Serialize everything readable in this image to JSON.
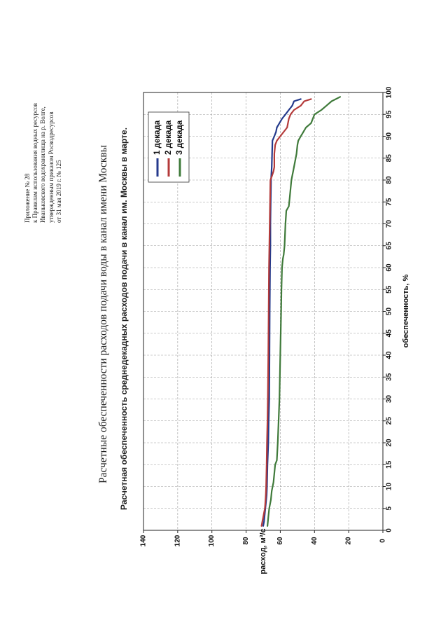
{
  "header": {
    "lines": [
      "Приложение № 28",
      "к Правилам использования водных ресурсов",
      "Иваньковского водохранилища на р. Волге,",
      "утвержденным приказом Росводресурсов",
      "от 31 мая 2019 г. № 125"
    ]
  },
  "main_title": "Расчетные обеспеченности расходов подачи воды в канал имени Москвы",
  "chart_data": {
    "type": "line",
    "title": "Расчетная обеспеченность среднедекадных расходов подачи в канал им. Москвы в марте.",
    "xlabel": "обеспеченность, %",
    "ylabel": "расход, м³/с",
    "xlim": [
      0,
      100
    ],
    "ylim": [
      0,
      140
    ],
    "x_ticks": [
      0,
      5,
      10,
      15,
      20,
      25,
      30,
      35,
      40,
      45,
      50,
      55,
      60,
      65,
      70,
      75,
      80,
      85,
      90,
      95,
      100
    ],
    "y_ticks": [
      0,
      20,
      40,
      60,
      80,
      100,
      120,
      140
    ],
    "grid": true,
    "legend_position": "top-left",
    "series": [
      {
        "name": "1 декада",
        "color": "#243a8c",
        "x": [
          1,
          2,
          4,
          6,
          8,
          10,
          15,
          20,
          25,
          30,
          40,
          50,
          60,
          65,
          70,
          75,
          80,
          83,
          86,
          89,
          90,
          91,
          92,
          93,
          94,
          95,
          96,
          97,
          98,
          98.5
        ],
        "y": [
          70,
          69.5,
          69,
          68.5,
          68,
          67.8,
          67.5,
          67,
          66.8,
          66.5,
          66.3,
          66.2,
          66,
          65.8,
          65.8,
          65.6,
          65.4,
          65,
          64.8,
          64.6,
          63.5,
          62.5,
          62,
          60.5,
          59,
          57,
          55,
          53,
          52,
          48
        ]
      },
      {
        "name": "2 декада",
        "color": "#b43a3a",
        "x": [
          1,
          2,
          3,
          4,
          5,
          6,
          8,
          10,
          15,
          20,
          25,
          30,
          40,
          50,
          60,
          65,
          70,
          75,
          80,
          81,
          82,
          83,
          86,
          88,
          89,
          90,
          92,
          93,
          94,
          95,
          96,
          97,
          98,
          98.5
        ],
        "y": [
          71,
          70.5,
          70,
          69.5,
          69,
          68.8,
          68.5,
          68.3,
          68,
          67.8,
          67.5,
          67.3,
          67,
          66.8,
          66.6,
          66.4,
          66.2,
          66,
          65.8,
          64.8,
          64,
          63.5,
          63.5,
          63,
          62,
          60,
          56,
          55.5,
          55,
          54,
          52,
          48,
          46,
          42
        ]
      },
      {
        "name": "3 декада",
        "color": "#3f7a3a",
        "x": [
          1,
          3,
          5,
          7,
          9,
          11,
          13,
          15,
          16,
          20,
          25,
          30,
          40,
          50,
          55,
          60,
          62,
          63,
          65,
          70,
          73,
          74,
          76,
          78,
          80,
          82,
          84,
          85,
          86,
          88,
          89,
          90,
          91,
          92,
          93,
          95,
          96,
          97,
          98,
          99
        ],
        "y": [
          67.5,
          67,
          66.5,
          65.5,
          65,
          64,
          63.5,
          63,
          62,
          61.5,
          61,
          60.5,
          60,
          59.5,
          59.3,
          59,
          58.5,
          58,
          57.5,
          57,
          56.5,
          55,
          54.5,
          54,
          53.5,
          52.5,
          51.5,
          51,
          50.5,
          50,
          49.5,
          48,
          46.5,
          45,
          42,
          40,
          36,
          33,
          30,
          25
        ]
      }
    ]
  }
}
